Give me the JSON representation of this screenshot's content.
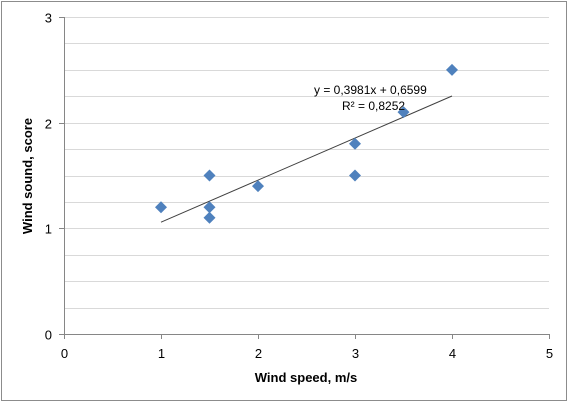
{
  "chart_data": {
    "type": "scatter",
    "title": "",
    "xlabel": "Wind speed, m/s",
    "ylabel": "Wind sound, score",
    "xlim": [
      0,
      5
    ],
    "ylim": [
      0,
      3
    ],
    "x_ticks": [
      "0",
      "1",
      "2",
      "3",
      "4",
      "5"
    ],
    "y_ticks": [
      "0",
      "1",
      "2",
      "3"
    ],
    "grid": {
      "horizontal_step": 0.25,
      "vertical": false
    },
    "legend": "none",
    "series": [
      {
        "marker": "diamond",
        "color": "#4f81bd",
        "points": [
          {
            "x": 1.0,
            "y": 1.2
          },
          {
            "x": 1.5,
            "y": 1.5
          },
          {
            "x": 1.5,
            "y": 1.2
          },
          {
            "x": 1.5,
            "y": 1.1
          },
          {
            "x": 2.0,
            "y": 1.4
          },
          {
            "x": 3.0,
            "y": 1.8
          },
          {
            "x": 3.0,
            "y": 1.5
          },
          {
            "x": 3.5,
            "y": 2.1
          },
          {
            "x": 4.0,
            "y": 2.5
          }
        ]
      }
    ],
    "trendline": {
      "slope": 0.3981,
      "intercept": 0.6599,
      "x_range": [
        1.0,
        4.0
      ],
      "color": "#404040",
      "equation_label": "y = 0,3981x + 0,6599",
      "r2_label": "R² = 0,8252"
    }
  }
}
